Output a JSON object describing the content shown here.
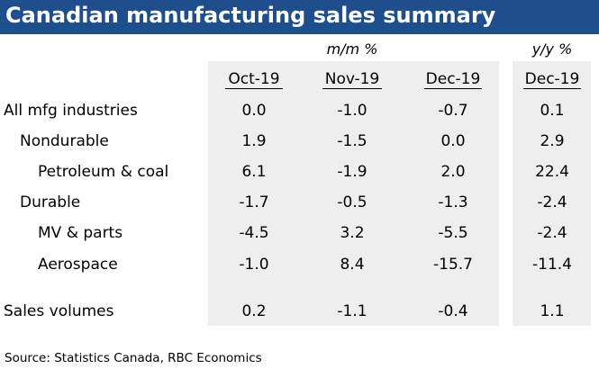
{
  "title": "Canadian manufacturing sales summary",
  "chart_data": {
    "type": "table",
    "title": "Canadian manufacturing sales summary",
    "column_groups": [
      {
        "label": "m/m %",
        "columns": [
          "Oct-19",
          "Nov-19",
          "Dec-19"
        ]
      },
      {
        "label": "y/y %",
        "columns": [
          "Dec-19"
        ]
      }
    ],
    "rows": [
      {
        "label": "All mfg industries",
        "values": [
          "0.0",
          "-1.0",
          "-0.7",
          "0.1"
        ]
      },
      {
        "label": "Nondurable",
        "values": [
          "1.9",
          "-1.5",
          "0.0",
          "2.9"
        ]
      },
      {
        "label": "Petroleum & coal",
        "values": [
          "6.1",
          "-1.9",
          "2.0",
          "22.4"
        ]
      },
      {
        "label": "Durable",
        "values": [
          "-1.7",
          "-0.5",
          "-1.3",
          "-2.4"
        ]
      },
      {
        "label": "MV & parts",
        "values": [
          "-4.5",
          "3.2",
          "-5.5",
          "-2.4"
        ]
      },
      {
        "label": "Aerospace",
        "values": [
          "-1.0",
          "8.4",
          "-15.7",
          "-11.4"
        ]
      },
      {
        "label": "Sales volumes",
        "values": [
          "0.2",
          "-1.1",
          "-0.4",
          "1.1"
        ]
      }
    ]
  },
  "source": "Source:  Statistics Canada, RBC Economics",
  "colors": {
    "title_bar": "#1f4e8c",
    "title_text": "#ffffff",
    "panel": "#eeeeee"
  }
}
